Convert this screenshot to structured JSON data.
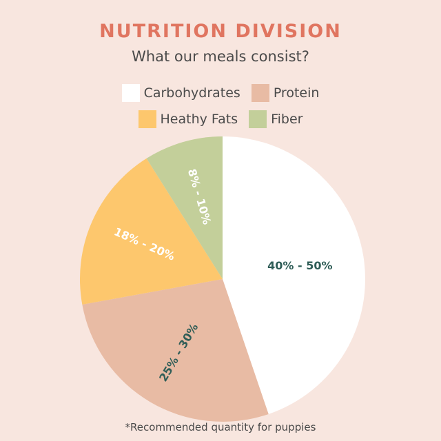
{
  "header": {
    "title": "NUTRITION DIVISION",
    "subtitle": "What our meals consist?"
  },
  "footnote": "*Recommended quantity for puppies",
  "chart_data": {
    "type": "pie",
    "title": "NUTRITION DIVISION",
    "subtitle": "What our meals consist?",
    "legend_position": "top",
    "categories": [
      "Carbohydrates",
      "Protein",
      "Heathy Fats",
      "Fiber"
    ],
    "values": [
      45,
      27.5,
      19,
      9
    ],
    "labels": [
      "40% - 50%",
      "25% - 30%",
      "18% - 20%",
      "8% - 10%"
    ],
    "colors": [
      "#ffffff",
      "#e8bba4",
      "#fdc76d",
      "#c3cf9a"
    ],
    "label_colors": [
      "#2f5d57",
      "#2f5d57",
      "#ffffff",
      "#ffffff"
    ]
  },
  "legend": {
    "items": [
      {
        "label": "Carbohydrates",
        "color": "#ffffff"
      },
      {
        "label": "Protein",
        "color": "#e8bba4"
      },
      {
        "label": "Heathy Fats",
        "color": "#fdc76d"
      },
      {
        "label": "Fiber",
        "color": "#c3cf9a"
      }
    ]
  }
}
